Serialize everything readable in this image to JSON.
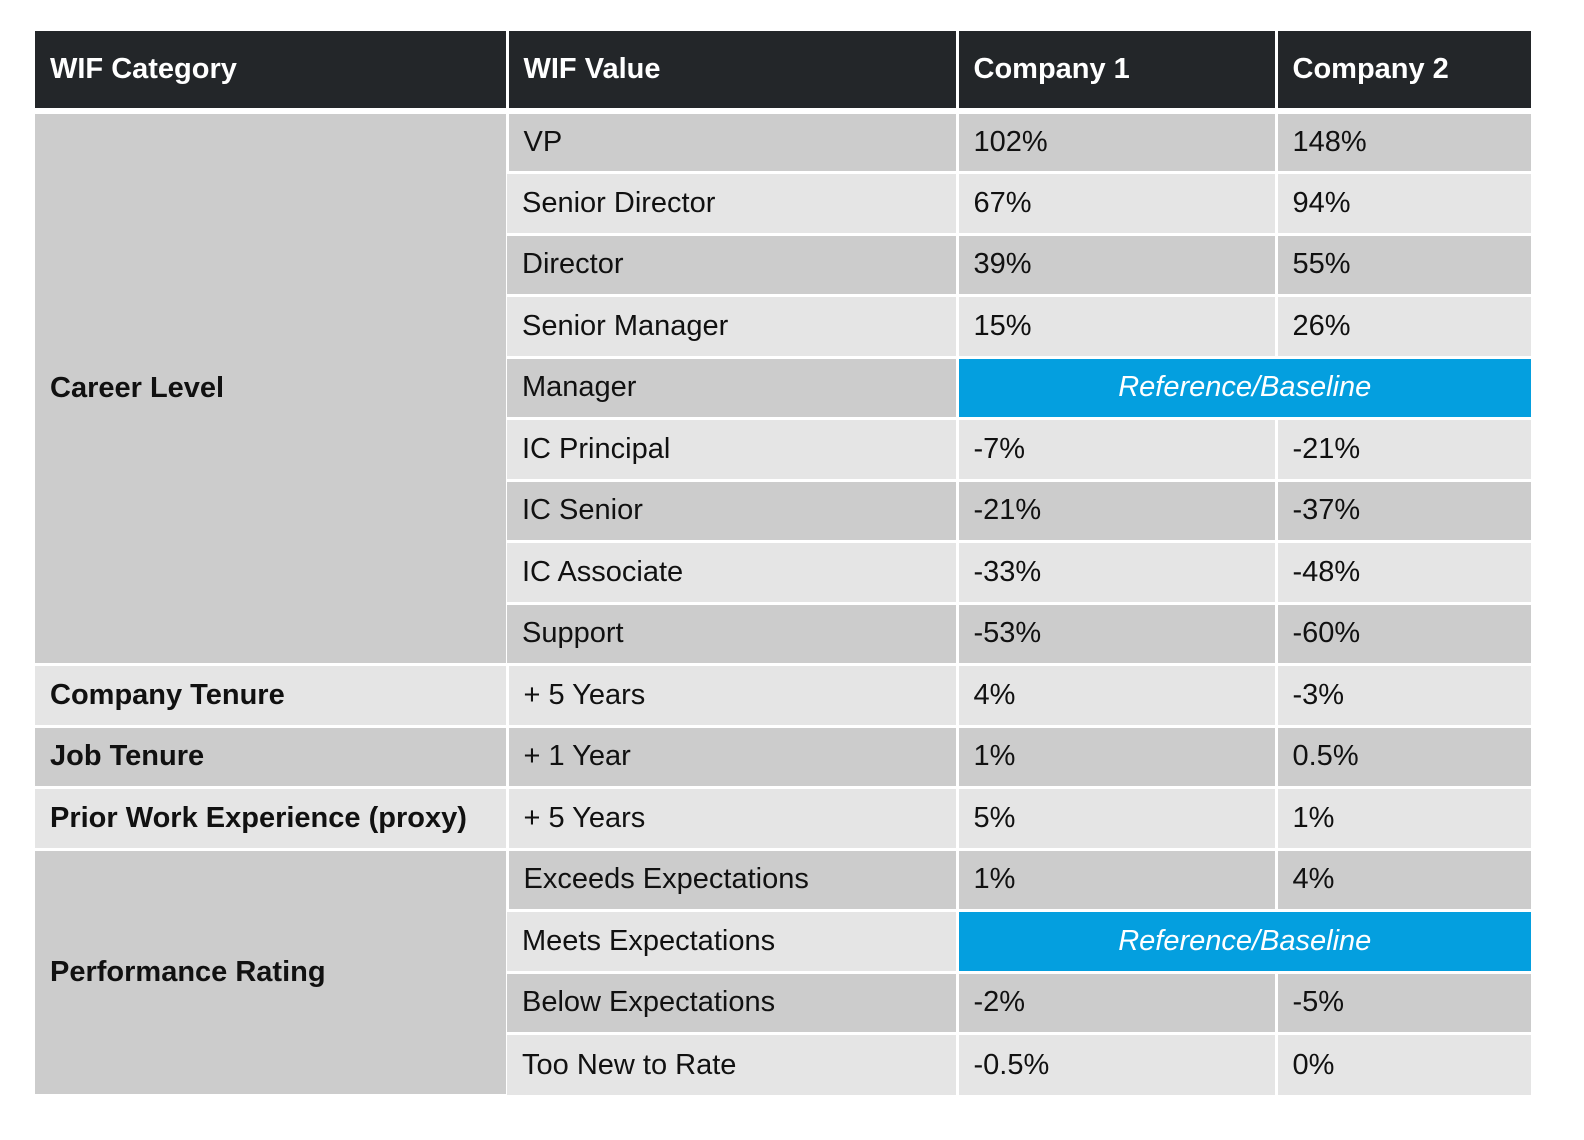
{
  "headers": [
    "WIF Category",
    "WIF Value",
    "Company 1",
    "Company 2"
  ],
  "baseline_label": "Reference/Baseline",
  "groups": [
    {
      "category": "Career Level",
      "rows": [
        {
          "value": "VP",
          "c1": "102%",
          "c2": "148%"
        },
        {
          "value": "Senior Director",
          "c1": "67%",
          "c2": "94%"
        },
        {
          "value": "Director",
          "c1": "39%",
          "c2": "55%"
        },
        {
          "value": "Senior Manager",
          "c1": "15%",
          "c2": "26%"
        },
        {
          "value": "Manager",
          "baseline": true
        },
        {
          "value": "IC Principal",
          "c1": "-7%",
          "c2": "-21%"
        },
        {
          "value": "IC Senior",
          "c1": "-21%",
          "c2": "-37%"
        },
        {
          "value": "IC Associate",
          "c1": "-33%",
          "c2": "-48%"
        },
        {
          "value": "Support",
          "c1": "-53%",
          "c2": "-60%"
        }
      ]
    },
    {
      "category": "Company Tenure",
      "rows": [
        {
          "value": "+ 5 Years",
          "c1": "4%",
          "c2": "-3%"
        }
      ]
    },
    {
      "category": "Job Tenure",
      "rows": [
        {
          "value": "+ 1 Year",
          "c1": "1%",
          "c2": "0.5%"
        }
      ]
    },
    {
      "category": "Prior Work Experience (proxy)",
      "rows": [
        {
          "value": "+ 5 Years",
          "c1": "5%",
          "c2": "1%"
        }
      ]
    },
    {
      "category": "Performance Rating",
      "rows": [
        {
          "value": "Exceeds Expectations",
          "c1": "1%",
          "c2": "4%"
        },
        {
          "value": "Meets Expectations",
          "baseline": true
        },
        {
          "value": "Below Expectations",
          "c1": "-2%",
          "c2": "-5%"
        },
        {
          "value": "Too New to Rate",
          "c1": "-0.5%",
          "c2": "0%"
        }
      ]
    }
  ],
  "colors": {
    "header_bg": "#232629",
    "row_dark": "#cccccc",
    "row_light": "#e5e5e5",
    "baseline": "#049fdf"
  }
}
